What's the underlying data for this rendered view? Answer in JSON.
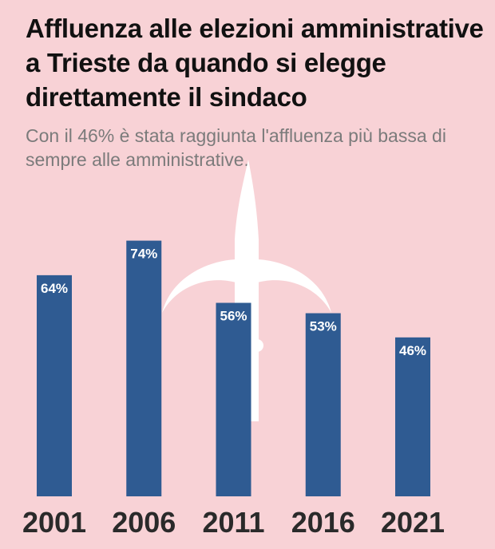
{
  "title": "Affluenza alle elezioni amministrative a Trieste da quando si elegge direttamente il sindaco",
  "subtitle": "Con il 46% è stata raggiunta l'affluenza più bassa di sempre alle amministrative.",
  "colors": {
    "background": "#f8d2d6",
    "bar": "#2f5b92",
    "emblem": "#ffffff"
  },
  "emblem_icon": "halberd-of-trieste-icon",
  "chart_data": {
    "type": "bar",
    "title": "Affluenza alle elezioni amministrative a Trieste da quando si elegge direttamente il sindaco",
    "subtitle": "Con il 46% è stata raggiunta l'affluenza più bassa di sempre alle amministrative.",
    "categories": [
      "2001",
      "2006",
      "2011",
      "2016",
      "2021"
    ],
    "values": [
      64,
      74,
      56,
      53,
      46
    ],
    "value_labels": [
      "64%",
      "74%",
      "56%",
      "53%",
      "46%"
    ],
    "unit": "%",
    "xlabel": "",
    "ylabel": "",
    "ylim": [
      0,
      100
    ],
    "grid": false,
    "legend": "none"
  }
}
